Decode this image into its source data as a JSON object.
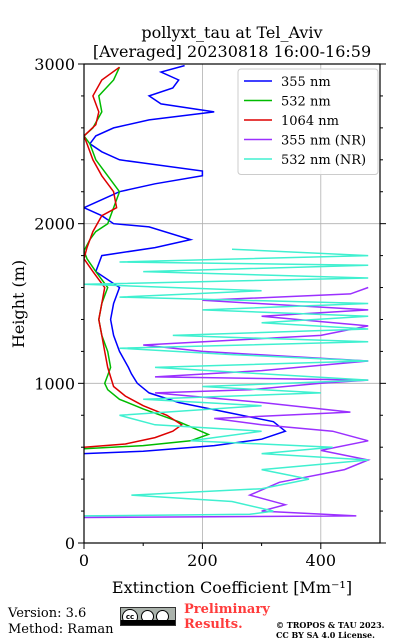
{
  "chart_data": {
    "type": "line",
    "title": "pollyxt_tau at Tel_Aviv",
    "subtitle": "[Averaged] 20230818 16:00-16:59",
    "xlabel": "Extinction Coefficient [$Mm^{-1}$]",
    "ylabel": "Height (m)",
    "xlim": [
      0,
      500
    ],
    "ylim": [
      0,
      3000
    ],
    "xticks": [
      "0",
      "200",
      "400"
    ],
    "yticks": [
      "0",
      "1000",
      "2000",
      "3000"
    ],
    "grid": true,
    "legend_position": "top-right",
    "series": [
      {
        "name": "355 nm",
        "color": "#0000ff",
        "points": [
          [
            0,
            560
          ],
          [
            100,
            575
          ],
          [
            220,
            610
          ],
          [
            300,
            650
          ],
          [
            340,
            700
          ],
          [
            320,
            760
          ],
          [
            240,
            820
          ],
          [
            160,
            880
          ],
          [
            110,
            940
          ],
          [
            90,
            1000
          ],
          [
            80,
            1060
          ],
          [
            75,
            1100
          ],
          [
            60,
            1200
          ],
          [
            50,
            1300
          ],
          [
            45,
            1400
          ],
          [
            50,
            1500
          ],
          [
            60,
            1600
          ],
          [
            20,
            1700
          ],
          [
            30,
            1800
          ],
          [
            120,
            1850
          ],
          [
            180,
            1900
          ],
          [
            110,
            1980
          ],
          [
            50,
            2000
          ],
          [
            30,
            2050
          ],
          [
            0,
            2100
          ],
          [
            30,
            2150
          ],
          [
            60,
            2200
          ],
          [
            120,
            2250
          ],
          [
            200,
            2300
          ],
          [
            200,
            2330
          ],
          [
            100,
            2380
          ],
          [
            60,
            2400
          ],
          [
            30,
            2450
          ],
          [
            10,
            2500
          ],
          [
            20,
            2550
          ],
          [
            50,
            2600
          ],
          [
            110,
            2650
          ],
          [
            220,
            2700
          ],
          [
            130,
            2750
          ],
          [
            110,
            2800
          ],
          [
            150,
            2850
          ],
          [
            160,
            2900
          ],
          [
            130,
            2950
          ],
          [
            170,
            2990
          ]
        ]
      },
      {
        "name": "532 nm",
        "color": "#00bb00",
        "points": [
          [
            0,
            590
          ],
          [
            100,
            610
          ],
          [
            180,
            640
          ],
          [
            210,
            680
          ],
          [
            160,
            760
          ],
          [
            100,
            840
          ],
          [
            60,
            900
          ],
          [
            40,
            960
          ],
          [
            35,
            1000
          ],
          [
            40,
            1050
          ],
          [
            45,
            1100
          ],
          [
            40,
            1200
          ],
          [
            30,
            1300
          ],
          [
            25,
            1400
          ],
          [
            30,
            1500
          ],
          [
            40,
            1600
          ],
          [
            20,
            1700
          ],
          [
            5,
            1780
          ],
          [
            0,
            1830
          ],
          [
            10,
            1900
          ],
          [
            20,
            1950
          ],
          [
            40,
            2000
          ],
          [
            50,
            2100
          ],
          [
            60,
            2200
          ],
          [
            40,
            2300
          ],
          [
            20,
            2400
          ],
          [
            10,
            2500
          ],
          [
            0,
            2550
          ],
          [
            15,
            2600
          ],
          [
            30,
            2700
          ],
          [
            25,
            2800
          ],
          [
            50,
            2900
          ],
          [
            60,
            2980
          ]
        ]
      },
      {
        "name": "1064 nm",
        "color": "#dd0000",
        "points": [
          [
            0,
            600
          ],
          [
            70,
            620
          ],
          [
            120,
            660
          ],
          [
            150,
            700
          ],
          [
            165,
            740
          ],
          [
            140,
            800
          ],
          [
            100,
            860
          ],
          [
            70,
            920
          ],
          [
            50,
            980
          ],
          [
            45,
            1040
          ],
          [
            40,
            1100
          ],
          [
            35,
            1200
          ],
          [
            30,
            1300
          ],
          [
            25,
            1400
          ],
          [
            30,
            1500
          ],
          [
            35,
            1600
          ],
          [
            15,
            1700
          ],
          [
            0,
            1780
          ],
          [
            5,
            1850
          ],
          [
            15,
            1950
          ],
          [
            30,
            2050
          ],
          [
            55,
            2100
          ],
          [
            50,
            2200
          ],
          [
            30,
            2300
          ],
          [
            15,
            2400
          ],
          [
            5,
            2500
          ],
          [
            0,
            2550
          ],
          [
            20,
            2620
          ],
          [
            25,
            2700
          ],
          [
            15,
            2800
          ],
          [
            30,
            2900
          ],
          [
            60,
            2980
          ]
        ]
      },
      {
        "name": "355 nm (NR)",
        "color": "#9b30ff",
        "points": [
          [
            0,
            160
          ],
          [
            460,
            170
          ],
          [
            300,
            200
          ],
          [
            340,
            240
          ],
          [
            280,
            300
          ],
          [
            330,
            380
          ],
          [
            440,
            460
          ],
          [
            480,
            520
          ],
          [
            400,
            580
          ],
          [
            480,
            640
          ],
          [
            420,
            700
          ],
          [
            300,
            740
          ],
          [
            220,
            780
          ],
          [
            450,
            820
          ],
          [
            300,
            880
          ],
          [
            120,
            940
          ],
          [
            280,
            960
          ],
          [
            400,
            1000
          ],
          [
            480,
            1020
          ],
          [
            120,
            1040
          ],
          [
            300,
            1080
          ],
          [
            480,
            1140
          ],
          [
            200,
            1200
          ],
          [
            100,
            1240
          ],
          [
            400,
            1300
          ],
          [
            480,
            1360
          ],
          [
            300,
            1420
          ],
          [
            480,
            1460
          ],
          [
            200,
            1520
          ],
          [
            450,
            1560
          ],
          [
            480,
            1600
          ]
        ]
      },
      {
        "name": "532 nm (NR)",
        "color": "#40f0d0",
        "points": [
          [
            0,
            170
          ],
          [
            280,
            180
          ],
          [
            320,
            200
          ],
          [
            250,
            260
          ],
          [
            80,
            300
          ],
          [
            300,
            340
          ],
          [
            380,
            400
          ],
          [
            300,
            460
          ],
          [
            480,
            520
          ],
          [
            300,
            560
          ],
          [
            420,
            600
          ],
          [
            180,
            640
          ],
          [
            300,
            700
          ],
          [
            120,
            740
          ],
          [
            60,
            800
          ],
          [
            300,
            860
          ],
          [
            100,
            900
          ],
          [
            400,
            940
          ],
          [
            200,
            980
          ],
          [
            480,
            1020
          ],
          [
            300,
            1060
          ],
          [
            120,
            1100
          ],
          [
            480,
            1140
          ],
          [
            250,
            1180
          ],
          [
            60,
            1220
          ],
          [
            480,
            1260
          ],
          [
            150,
            1300
          ],
          [
            480,
            1340
          ],
          [
            300,
            1380
          ],
          [
            480,
            1420
          ],
          [
            200,
            1460
          ],
          [
            480,
            1500
          ],
          [
            60,
            1540
          ],
          [
            300,
            1580
          ],
          [
            0,
            1620
          ],
          [
            480,
            1660
          ],
          [
            100,
            1700
          ],
          [
            480,
            1740
          ],
          [
            60,
            1760
          ],
          [
            480,
            1800
          ],
          [
            250,
            1840
          ]
        ]
      }
    ]
  },
  "footer": {
    "version": "Version: 3.6",
    "method": "Method: Raman",
    "badge_label": "BY   SA",
    "preliminary_line1": "Preliminary",
    "preliminary_line2": "Results.",
    "copyright_line1": "© TROPOS & TAU 2023.",
    "copyright_line2": "CC BY SA 4.0 License."
  }
}
